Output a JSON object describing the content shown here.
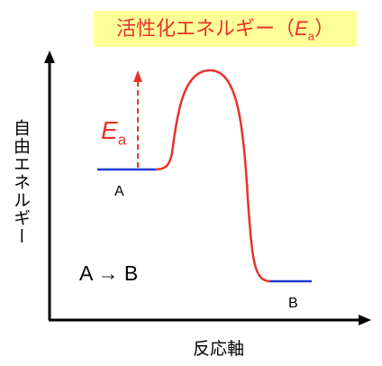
{
  "title": {
    "prefix": "活性化エネルギー（",
    "symbol": "E",
    "subscript": "a",
    "suffix": "）"
  },
  "y_axis_label": "自由エネルギー",
  "x_axis_label": "反応軸",
  "state_a": "A",
  "state_b": "B",
  "reaction": "A → B",
  "activation": {
    "symbol": "E",
    "subscript": "a"
  }
}
